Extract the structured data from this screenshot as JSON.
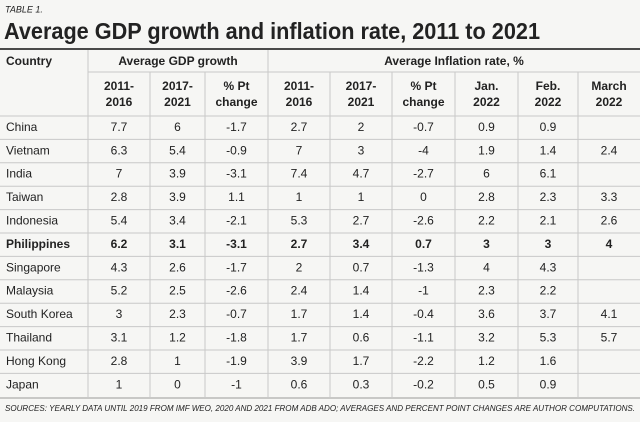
{
  "header": {
    "label": "TABLE 1.",
    "title": "Average GDP growth and inflation rate, 2011 to 2021"
  },
  "table": {
    "country_header": "Country",
    "groups": [
      {
        "title": "Average GDP growth",
        "columns": [
          [
            "2011-",
            "2016"
          ],
          [
            "2017-",
            "2021"
          ],
          [
            "% Pt",
            "change"
          ]
        ]
      },
      {
        "title": "Average Inflation rate, %",
        "columns": [
          [
            "2011-",
            "2016"
          ],
          [
            "2017-",
            "2021"
          ],
          [
            "% Pt",
            "change"
          ],
          [
            "Jan.",
            "2022"
          ],
          [
            "Feb.",
            "2022"
          ],
          [
            "March",
            "2022"
          ]
        ]
      }
    ],
    "rows": [
      {
        "country": "China",
        "values": [
          7.7,
          6,
          -1.7,
          2.7,
          2,
          -0.7,
          0.9,
          0.9,
          null
        ]
      },
      {
        "country": "Vietnam",
        "values": [
          6.3,
          5.4,
          -0.9,
          7,
          3,
          -4,
          1.9,
          1.4,
          2.4
        ]
      },
      {
        "country": "India",
        "values": [
          7,
          3.9,
          -3.1,
          7.4,
          4.7,
          -2.7,
          6,
          6.1,
          null
        ]
      },
      {
        "country": "Taiwan",
        "values": [
          2.8,
          3.9,
          1.1,
          1,
          1,
          0,
          2.8,
          2.3,
          3.3
        ]
      },
      {
        "country": "Indonesia",
        "values": [
          5.4,
          3.4,
          -2.1,
          5.3,
          2.7,
          -2.6,
          2.2,
          2.1,
          2.6
        ]
      },
      {
        "country": "Philippines",
        "bold": true,
        "values": [
          6.2,
          3.1,
          -3.1,
          2.7,
          3.4,
          0.7,
          3,
          3,
          4
        ]
      },
      {
        "country": "Singapore",
        "values": [
          4.3,
          2.6,
          -1.7,
          2,
          0.7,
          -1.3,
          4,
          4.3,
          null
        ]
      },
      {
        "country": "Malaysia",
        "values": [
          5.2,
          2.5,
          -2.6,
          2.4,
          1.4,
          -1,
          2.3,
          2.2,
          null
        ]
      },
      {
        "country": "South Korea",
        "values": [
          3,
          2.3,
          -0.7,
          1.7,
          1.4,
          -0.4,
          3.6,
          3.7,
          4.1
        ]
      },
      {
        "country": "Thailand",
        "values": [
          3.1,
          1.2,
          -1.8,
          1.7,
          0.6,
          -1.1,
          3.2,
          5.3,
          5.7
        ]
      },
      {
        "country": "Hong Kong",
        "values": [
          2.8,
          1,
          -1.9,
          3.9,
          1.7,
          -2.2,
          1.2,
          1.6,
          null
        ]
      },
      {
        "country": "Japan",
        "values": [
          1,
          0,
          -1,
          0.6,
          0.3,
          -0.2,
          0.5,
          0.9,
          null
        ]
      }
    ]
  },
  "footer": {
    "source": "SOURCES: YEARLY DATA UNTIL 2019 FROM IMF WEO, 2020 AND 2021 FROM ADB ADO; AVERAGES AND PERCENT POINT CHANGES ARE AUTHOR COMPUTATIONS."
  }
}
